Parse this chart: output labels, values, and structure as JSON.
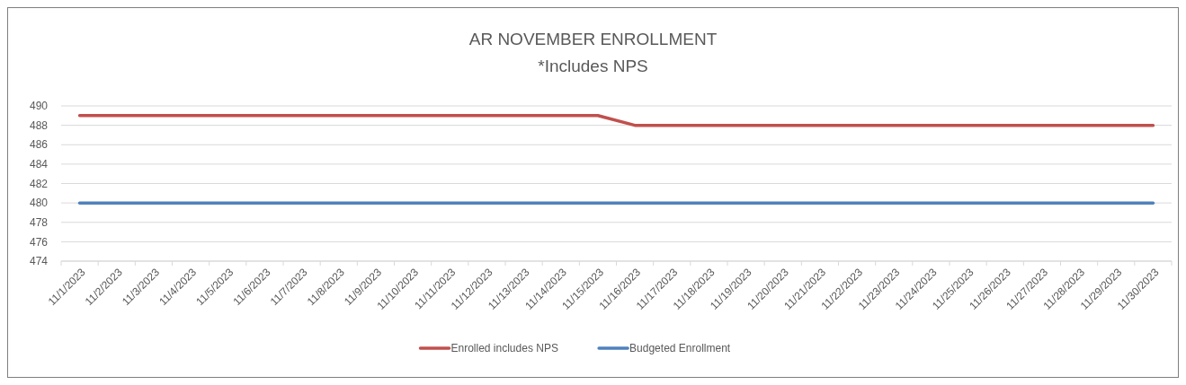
{
  "chart_data": {
    "type": "line",
    "title": "AR NOVEMBER ENROLLMENT",
    "subtitle": "*Includes NPS",
    "categories": [
      "11/1/2023",
      "11/2/2023",
      "11/3/2023",
      "11/4/2023",
      "11/5/2023",
      "11/6/2023",
      "11/7/2023",
      "11/8/2023",
      "11/9/2023",
      "11/10/2023",
      "11/11/2023",
      "11/12/2023",
      "11/13/2023",
      "11/14/2023",
      "11/15/2023",
      "11/16/2023",
      "11/17/2023",
      "11/18/2023",
      "11/19/2023",
      "11/20/2023",
      "11/21/2023",
      "11/22/2023",
      "11/23/2023",
      "11/24/2023",
      "11/25/2023",
      "11/26/2023",
      "11/27/2023",
      "11/28/2023",
      "11/29/2023",
      "11/30/2023"
    ],
    "series": [
      {
        "name": "Enrolled includes NPS",
        "color": "#c0504d",
        "values": [
          489,
          489,
          489,
          489,
          489,
          489,
          489,
          489,
          489,
          489,
          489,
          489,
          489,
          489,
          489,
          488,
          488,
          488,
          488,
          488,
          488,
          488,
          488,
          488,
          488,
          488,
          488,
          488,
          488,
          488
        ]
      },
      {
        "name": "Budgeted Enrollment",
        "color": "#4f81bd",
        "values": [
          480,
          480,
          480,
          480,
          480,
          480,
          480,
          480,
          480,
          480,
          480,
          480,
          480,
          480,
          480,
          480,
          480,
          480,
          480,
          480,
          480,
          480,
          480,
          480,
          480,
          480,
          480,
          480,
          480,
          480
        ]
      }
    ],
    "ylim": [
      474,
      490
    ],
    "yticks": [
      474,
      476,
      478,
      480,
      482,
      484,
      486,
      488,
      490
    ],
    "grid": "y",
    "legend": "bottom",
    "marker": "none",
    "line_style": "solid"
  }
}
